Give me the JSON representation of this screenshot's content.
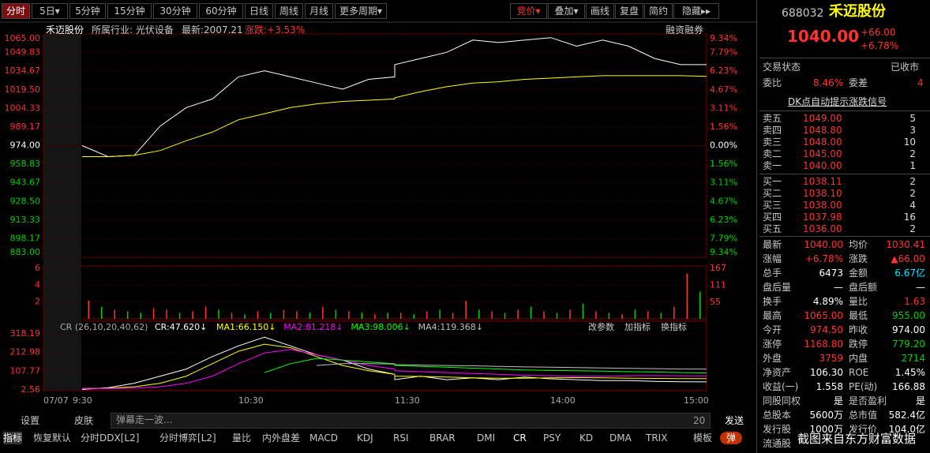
{
  "toolbar": {
    "left": [
      "分时",
      "5日▾",
      "5分钟",
      "15分钟",
      "30分钟",
      "60分钟",
      "日线",
      "周线",
      "月线",
      "更多周期▾"
    ],
    "right": [
      "竞价▾",
      "叠加▾",
      "画线",
      "复盘",
      "简约",
      "隐藏▸▸"
    ]
  },
  "info_bar": {
    "name": "禾迈股份",
    "industry": "所属行业: 光伏设备",
    "latest": "最新:2007.21",
    "change": "涨跌:+3.53%",
    "margin": "融资融券"
  },
  "chart_data": [
    {
      "type": "line",
      "series": [
        {
          "color": "#ffffff",
          "values": [
            974,
            965,
            966,
            990,
            1005,
            1012,
            1030,
            1035,
            1030,
            1025,
            1020,
            1028,
            1030,
            1040,
            1045,
            1050,
            1060,
            1058,
            1060,
            1062,
            1055,
            1060,
            1055,
            1045,
            1040,
            1040
          ]
        },
        {
          "color": "#ffff00",
          "values": [
            965,
            965,
            966,
            970,
            978,
            985,
            995,
            1000,
            1005,
            1008,
            1010,
            1011,
            1012,
            1013,
            1018,
            1022,
            1025,
            1026,
            1028,
            1029,
            1030,
            1031,
            1031,
            1031,
            1031,
            1030.41
          ]
        }
      ],
      "ylim": [
        883,
        1065
      ],
      "yticks": [
        {
          "value": 1065,
          "label": "1065.00"
        },
        {
          "value": 1049.83,
          "label": "1049.83"
        },
        {
          "value": 1034.67,
          "label": "1034.67"
        },
        {
          "value": 1019.5,
          "label": "1019.50"
        },
        {
          "value": 1004.33,
          "label": "1004.33"
        },
        {
          "value": 989.17,
          "label": "989.17"
        },
        {
          "value": 974,
          "label": "974.00"
        },
        {
          "value": 958.83,
          "label": "958.83"
        },
        {
          "value": 943.67,
          "label": "943.67"
        },
        {
          "value": 928.5,
          "label": "928.50"
        },
        {
          "value": 913.33,
          "label": "913.33"
        },
        {
          "value": 898.17,
          "label": "898.17"
        },
        {
          "value": 883,
          "label": "883.00"
        }
      ],
      "y2lim": [
        -9.34,
        9.34
      ],
      "y2ticks": [
        {
          "value": 9.34,
          "label": "9.34%"
        },
        {
          "value": 7.79,
          "label": "7.79%"
        },
        {
          "value": 6.23,
          "label": "6.23%"
        },
        {
          "value": 4.67,
          "label": "4.67%"
        },
        {
          "value": 3.11,
          "label": "3.11%"
        },
        {
          "value": 1.56,
          "label": "1.56%"
        },
        {
          "value": 0,
          "label": "0.00%"
        },
        {
          "value": -1.56,
          "label": "1.56%"
        },
        {
          "value": -3.11,
          "label": "3.11%"
        },
        {
          "value": -4.67,
          "label": "4.67%"
        },
        {
          "value": -6.23,
          "label": "6.23%"
        },
        {
          "value": -7.79,
          "label": "7.79%"
        },
        {
          "value": -9.34,
          "label": "9.34%"
        }
      ]
    },
    {
      "type": "bar",
      "ylim": [
        0,
        6
      ],
      "yticks": [
        2,
        4,
        6
      ],
      "y2lim": [
        0,
        167
      ],
      "y2ticks": [
        55,
        111,
        167
      ],
      "series": [
        {
          "axis": "y2",
          "values": [
            60,
            40,
            30,
            25,
            20,
            35,
            30,
            20,
            25,
            40,
            30,
            20,
            15,
            25,
            20,
            30,
            25,
            20,
            40,
            30,
            25,
            20,
            15,
            20,
            20,
            15,
            25,
            30,
            20,
            60,
            30,
            25,
            20,
            30,
            40,
            25,
            20,
            30,
            50,
            25,
            20,
            15,
            30,
            25,
            20,
            40,
            150,
            90
          ],
          "colors": [
            "#ff3232",
            "#00d000",
            "#ff3232",
            "#00d000",
            "#00d000",
            "#ff3232",
            "#ff3232",
            "#00d000",
            "#ff3232",
            "#ff3232",
            "#00d000",
            "#ff3232",
            "#00d000",
            "#ff3232",
            "#00d000",
            "#ff3232",
            "#ff3232",
            "#00d000",
            "#ff3232",
            "#00d000",
            "#ff3232",
            "#00d000",
            "#ff3232",
            "#00d000",
            "#ff3232",
            "#00d000",
            "#ff3232",
            "#00d000",
            "#ff3232",
            "#ff3232",
            "#00d000",
            "#ff3232",
            "#00d000",
            "#ff3232",
            "#00d000",
            "#ff3232",
            "#00d000",
            "#ff3232",
            "#00d000",
            "#ff3232",
            "#00d000",
            "#ff3232",
            "#00d000",
            "#ff3232",
            "#00d000",
            "#ff3232",
            "#ff3232",
            "#00d000"
          ]
        }
      ]
    },
    {
      "type": "line",
      "title": "CR (26,10,20,40,62)",
      "ylim": [
        2.56,
        318.19
      ],
      "yticks": [
        318.19,
        212.98,
        107.77,
        2.56
      ],
      "series": [
        {
          "name": "CR:47.620↓",
          "color": "#ffffff",
          "values": [
            5,
            15,
            40,
            80,
            120,
            190,
            250,
            300,
            250,
            200,
            170,
            120,
            90,
            60,
            80,
            60,
            70,
            60,
            75,
            65,
            60,
            55,
            55,
            50,
            48,
            47.62
          ]
        },
        {
          "name": "MA1:66.150↓",
          "color": "#ffff00",
          "values": [
            10,
            12,
            20,
            40,
            80,
            150,
            220,
            260,
            240,
            190,
            140,
            110,
            90,
            80,
            78,
            75,
            70,
            68,
            68,
            70,
            72,
            70,
            68,
            67,
            66,
            66.15
          ]
        },
        {
          "name": "MA2:81.218↓",
          "color": "#ff00ff",
          "values": [
            10,
            10,
            12,
            20,
            40,
            80,
            150,
            210,
            230,
            200,
            170,
            140,
            120,
            110,
            105,
            100,
            95,
            90,
            85,
            82,
            80,
            80,
            82,
            83,
            82,
            81.218
          ]
        },
        {
          "name": "MA3:98.006↓",
          "color": "#00ff00",
          "values": [
            null,
            null,
            null,
            null,
            null,
            null,
            null,
            100,
            150,
            180,
            170,
            160,
            150,
            140,
            135,
            130,
            125,
            120,
            115,
            112,
            110,
            108,
            105,
            103,
            100,
            98.006
          ]
        },
        {
          "name": "MA4:119.368↓",
          "color": "#c0c0c0",
          "values": [
            null,
            null,
            null,
            null,
            null,
            null,
            null,
            null,
            null,
            140,
            150,
            150,
            148,
            145,
            142,
            140,
            138,
            135,
            132,
            130,
            128,
            126,
            124,
            122,
            120,
            119.368
          ]
        }
      ]
    }
  ],
  "time_axis": [
    "07/07",
    "9:30",
    "10:30",
    "11:30",
    "14:00",
    "15:00"
  ],
  "indicator_buttons": [
    "改参数",
    "加指标",
    "换指标"
  ],
  "bottom_bar": {
    "settings": "设置",
    "skin": "皮肤",
    "input": "弹幕走一波...",
    "count": "20",
    "send": "发送"
  },
  "tabs": [
    "指标",
    "恢复默认",
    "分时DDX[L2]",
    "分时博弈[L2]",
    "量比",
    "内外盘差",
    "MACD",
    "KDJ",
    "RSI",
    "BRAR",
    "DMI",
    "CR",
    "PSY",
    "KD",
    "DMA",
    "TRIX",
    "模板",
    "弹"
  ],
  "quote": {
    "code": "688032",
    "name": "禾迈股份",
    "price": "1040.00",
    "change": "+66.00",
    "pct": "+6.78%",
    "status": [
      "交易状态",
      "已收市"
    ],
    "ratio": [
      "委比",
      "8.46%",
      "委差",
      "4"
    ],
    "signal": "DK点自动提示涨跌信号",
    "sells": [
      [
        "卖五",
        "1049.00",
        "5"
      ],
      [
        "卖四",
        "1048.80",
        "3"
      ],
      [
        "卖三",
        "1048.00",
        "10"
      ],
      [
        "卖二",
        "1045.00",
        "2"
      ],
      [
        "卖一",
        "1040.00",
        "1"
      ]
    ],
    "buys": [
      [
        "买一",
        "1038.11",
        "2"
      ],
      [
        "买二",
        "1038.10",
        "2"
      ],
      [
        "买三",
        "1038.00",
        "4"
      ],
      [
        "买四",
        "1037.98",
        "16"
      ],
      [
        "买五",
        "1036.00",
        "2"
      ]
    ],
    "stats": [
      [
        "最新",
        "1040.00",
        "均价",
        "1030.41"
      ],
      [
        "涨幅",
        "+6.78%",
        "涨跌",
        "▲66.00"
      ],
      [
        "总手",
        "6473",
        "金额",
        "6.67亿"
      ],
      [
        "盘后量",
        "—",
        "盘后额",
        "—"
      ],
      [
        "换手",
        "4.89%",
        "量比",
        "1.63"
      ],
      [
        "最高",
        "1065.00",
        "最低",
        "955.00"
      ],
      [
        "今开",
        "974.50",
        "昨收",
        "974.00"
      ],
      [
        "涨停",
        "1168.80",
        "跌停",
        "779.20"
      ],
      [
        "外盘",
        "3759",
        "内盘",
        "2714"
      ],
      [
        "净资产",
        "106.30",
        "ROE",
        "1.45%"
      ],
      [
        "收益(一)",
        "1.558",
        "PE(动)",
        "166.88"
      ],
      [
        "同股同权",
        "是",
        "是否盈利",
        "是"
      ],
      [
        "总股本",
        "5600万",
        "总市值",
        "582.4亿"
      ],
      [
        "发行股",
        "1000万",
        "发行价",
        "104.0亿"
      ],
      [
        "流通股"
      ]
    ]
  },
  "watermark": "截图来自东方财富数据"
}
